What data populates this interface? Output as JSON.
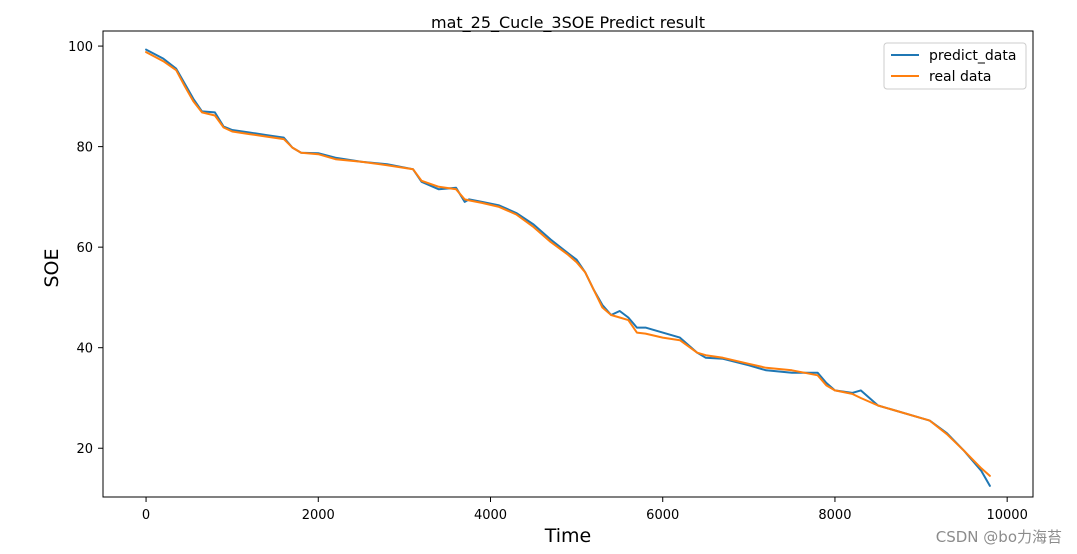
{
  "chart_data": {
    "type": "line",
    "title": "mat_25_Cucle_3SOE Predict result",
    "xlabel": "Time",
    "ylabel": "SOE",
    "xlim": [
      -500,
      10300
    ],
    "ylim": [
      10.3,
      103.0
    ],
    "x_ticks": [
      0,
      2000,
      4000,
      6000,
      8000,
      10000
    ],
    "y_ticks": [
      20,
      40,
      60,
      80,
      100
    ],
    "grid": false,
    "legend_position": "top-right",
    "series": [
      {
        "name": "predict_data",
        "color": "#1f77b4",
        "x": [
          0,
          200,
          350,
          450,
          550,
          650,
          800,
          900,
          1000,
          1200,
          1400,
          1600,
          1700,
          1800,
          2000,
          2200,
          2500,
          2800,
          3100,
          3200,
          3400,
          3600,
          3700,
          3750,
          3900,
          4100,
          4300,
          4500,
          4700,
          4900,
          5000,
          5100,
          5200,
          5300,
          5400,
          5500,
          5600,
          5700,
          5800,
          6000,
          6200,
          6400,
          6500,
          6700,
          7000,
          7200,
          7500,
          7800,
          7900,
          8000,
          8200,
          8300,
          8500,
          8700,
          9000,
          9100,
          9300,
          9500,
          9700,
          9800
        ],
        "y": [
          99.3,
          97.5,
          95.5,
          92.5,
          89.5,
          87.0,
          86.8,
          84.0,
          83.3,
          82.8,
          82.3,
          81.8,
          79.8,
          78.8,
          78.7,
          77.8,
          77.0,
          76.5,
          75.5,
          73.0,
          71.5,
          71.8,
          69.0,
          69.5,
          69.0,
          68.3,
          66.8,
          64.5,
          61.5,
          58.8,
          57.5,
          55.0,
          51.5,
          48.5,
          46.5,
          47.3,
          46.0,
          44.0,
          44.0,
          43.0,
          42.0,
          39.0,
          38.0,
          37.8,
          36.5,
          35.5,
          35.0,
          35.0,
          33.0,
          31.5,
          31.0,
          31.5,
          28.5,
          27.5,
          26.0,
          25.5,
          23.0,
          19.5,
          15.5,
          12.5
        ]
      },
      {
        "name": "real data",
        "color": "#ff7f0e",
        "x": [
          0,
          200,
          350,
          450,
          550,
          650,
          800,
          900,
          1000,
          1200,
          1400,
          1600,
          1700,
          1800,
          2000,
          2200,
          2500,
          2800,
          3100,
          3200,
          3400,
          3600,
          3700,
          3750,
          3900,
          4100,
          4300,
          4500,
          4700,
          4900,
          5000,
          5100,
          5200,
          5300,
          5400,
          5500,
          5600,
          5700,
          5800,
          6000,
          6200,
          6400,
          6500,
          6700,
          7000,
          7200,
          7500,
          7800,
          7900,
          8000,
          8200,
          8300,
          8500,
          8700,
          9000,
          9100,
          9300,
          9500,
          9700,
          9800
        ],
        "y": [
          98.8,
          97.0,
          95.2,
          92.0,
          89.0,
          86.8,
          86.2,
          83.8,
          83.0,
          82.5,
          82.0,
          81.5,
          79.8,
          78.8,
          78.5,
          77.5,
          77.0,
          76.3,
          75.5,
          73.2,
          72.0,
          71.5,
          69.5,
          69.3,
          68.8,
          68.0,
          66.5,
          64.0,
          61.0,
          58.5,
          57.0,
          55.0,
          51.5,
          48.0,
          46.5,
          46.0,
          45.5,
          43.0,
          42.8,
          42.0,
          41.5,
          39.0,
          38.5,
          38.0,
          36.8,
          36.0,
          35.5,
          34.5,
          32.5,
          31.5,
          30.8,
          30.0,
          28.5,
          27.5,
          26.0,
          25.5,
          22.8,
          19.5,
          16.0,
          14.5
        ]
      }
    ]
  },
  "watermark": "CSDN @bo力海苔"
}
